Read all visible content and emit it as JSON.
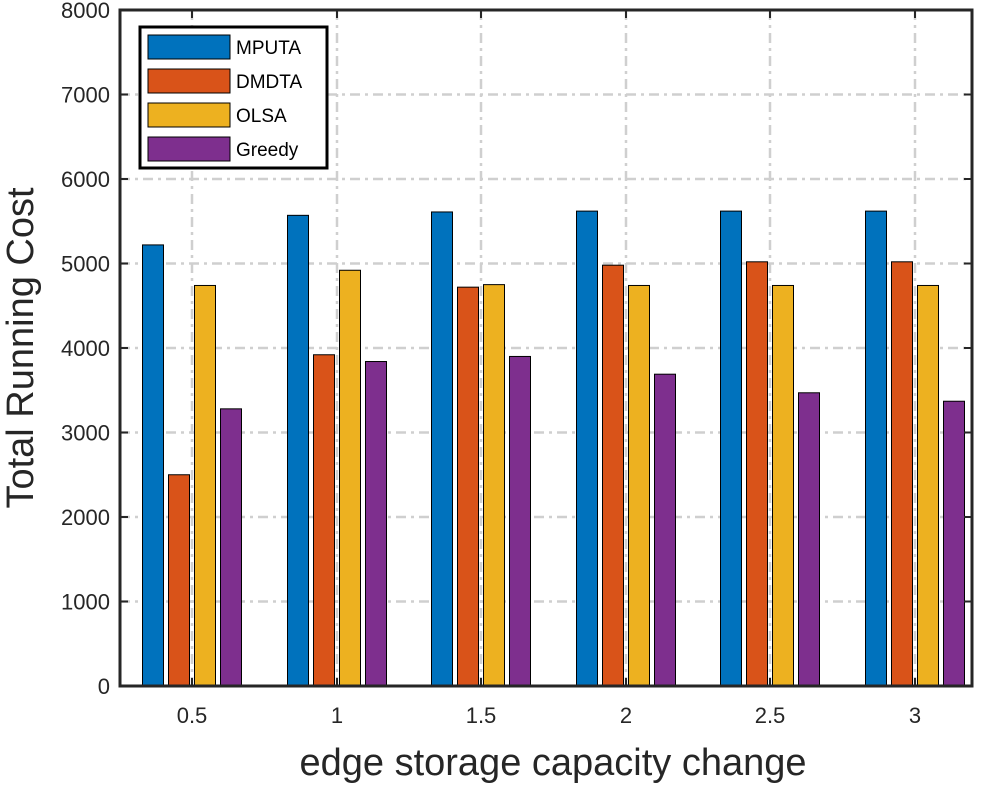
{
  "chart_data": {
    "type": "bar",
    "categories": [
      "0.5",
      "1",
      "1.5",
      "2",
      "2.5",
      "3"
    ],
    "series": [
      {
        "name": "MPUTA",
        "color": "#0072BD",
        "values": [
          5220,
          5570,
          5610,
          5620,
          5620,
          5620
        ]
      },
      {
        "name": "DMDTA",
        "color": "#D95319",
        "values": [
          2500,
          3920,
          4720,
          4980,
          5020,
          5020
        ]
      },
      {
        "name": "OLSA",
        "color": "#EDB120",
        "values": [
          4740,
          4920,
          4750,
          4740,
          4740,
          4740
        ]
      },
      {
        "name": "Greedy",
        "color": "#7E2F8E",
        "values": [
          3280,
          3840,
          3900,
          3690,
          3470,
          3370
        ]
      }
    ],
    "xlabel": "edge storage capacity change",
    "ylabel": "Total Running Cost",
    "ylim": [
      0,
      8000
    ],
    "yticks": [
      "0",
      "1000",
      "2000",
      "3000",
      "4000",
      "5000",
      "6000",
      "7000",
      "8000"
    ],
    "grid": true,
    "legend_position": "top-left"
  }
}
